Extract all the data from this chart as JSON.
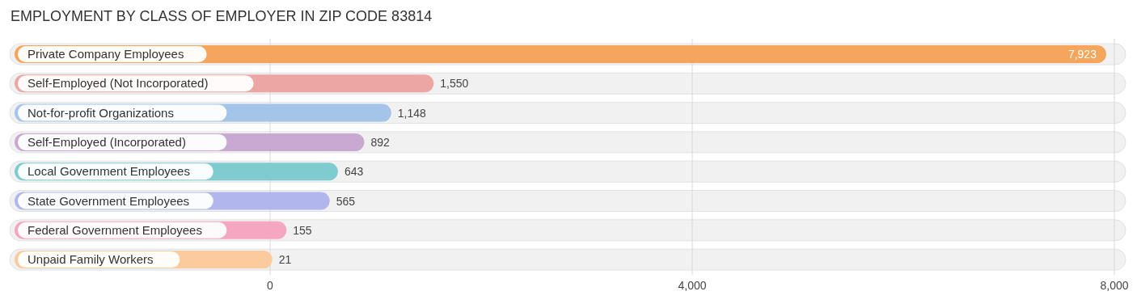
{
  "chart_data": {
    "type": "bar",
    "orientation": "horizontal",
    "title": "EMPLOYMENT BY CLASS OF EMPLOYER IN ZIP CODE 83814",
    "categories": [
      "Private Company Employees",
      "Self-Employed (Not Incorporated)",
      "Not-for-profit Organizations",
      "Self-Employed (Incorporated)",
      "Local Government Employees",
      "State Government Employees",
      "Federal Government Employees",
      "Unpaid Family Workers"
    ],
    "values": [
      7923,
      1550,
      1148,
      892,
      643,
      565,
      155,
      21
    ],
    "colors": [
      "#f6a55c",
      "#eca7a4",
      "#a4c4ea",
      "#c9a9d1",
      "#7ecbd0",
      "#b1b7ed",
      "#f5a6c0",
      "#fbcb9d"
    ],
    "xlim": [
      0,
      8000
    ],
    "xticks": [
      0,
      {
        "value": 4000,
        "label": "4,000"
      },
      {
        "value": 8000,
        "label": "8,000"
      }
    ],
    "grid": "x",
    "value_labels": [
      "7,923",
      "1,550",
      "1,148",
      "892",
      "643",
      "565",
      "155",
      "21"
    ]
  }
}
